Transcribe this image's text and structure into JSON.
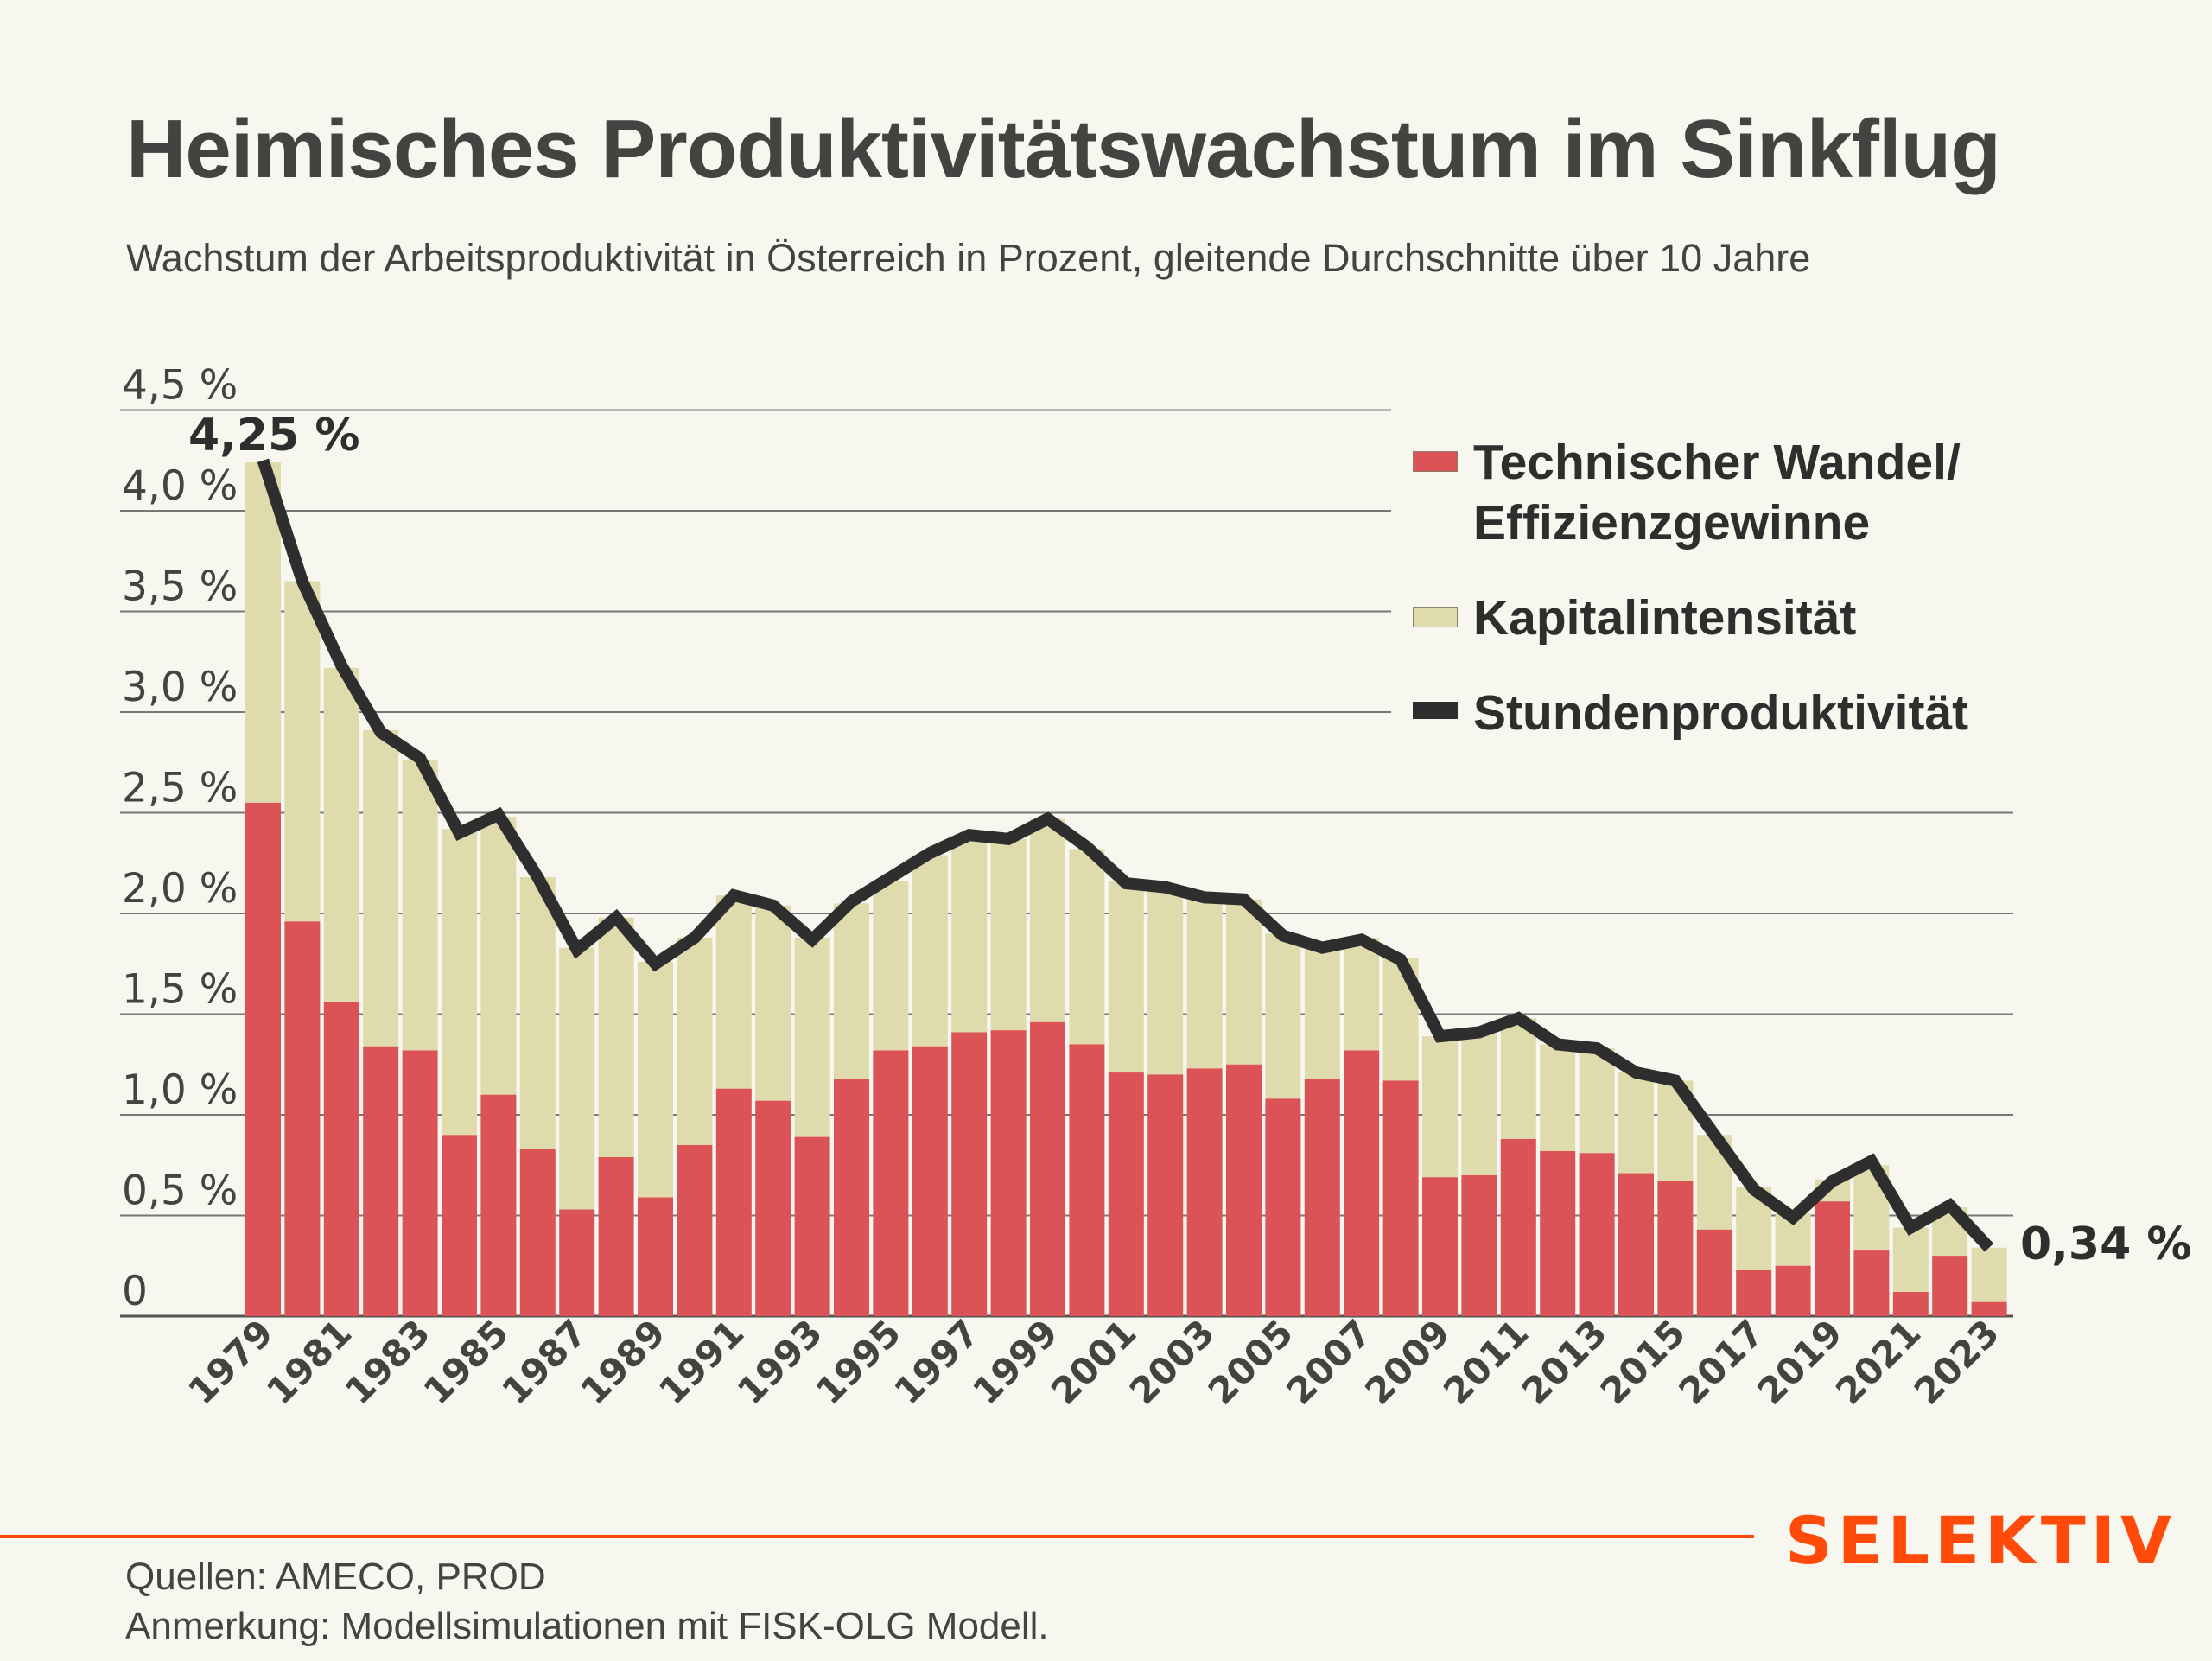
{
  "header": {
    "title": "Heimisches Produktivitätswachstum im Sinkflug",
    "subtitle": "Wachstum der Arbeitsproduktivität in Österreich in Prozent, gleitende Durchschnitte über 10 Jahre"
  },
  "legend": {
    "items": [
      {
        "label_line1": "Technischer Wandel/",
        "label_line2": "Effizienzgewinne",
        "color": "#DB5257"
      },
      {
        "label_line1": "Kapitalintensität",
        "label_line2": "",
        "color": "#DFDBAD"
      },
      {
        "label_line1": "Stundenproduktivität",
        "label_line2": "",
        "color": "#2E2E2E"
      }
    ]
  },
  "footer": {
    "sources": "Quellen: AMECO, PROD",
    "note": "Anmerkung: Modellsimulationen mit FISK-OLG Modell.",
    "brand": "SELEKTIV",
    "brand_color": "#FF4A0A"
  },
  "chart_data": {
    "type": "bar",
    "stacked": true,
    "title": "Heimisches Produktivitätswachstum im Sinkflug",
    "subtitle": "Wachstum der Arbeitsproduktivität in Österreich in Prozent, gleitende Durchschnitte über 10 Jahre",
    "xlabel": "",
    "ylabel": "",
    "ylim": [
      0,
      4.5
    ],
    "yticks": [
      0,
      0.5,
      1.0,
      1.5,
      2.0,
      2.5,
      3.0,
      3.5,
      4.0,
      4.5
    ],
    "ytick_labels": [
      "0",
      "0,5 %",
      "1,0 %",
      "1,5 %",
      "2,0 %",
      "2,5 %",
      "3,0 %",
      "3,5 %",
      "4,0 %",
      "4,5 %"
    ],
    "grid": true,
    "legend_position": "top-right",
    "categories": [
      1979,
      1980,
      1981,
      1982,
      1983,
      1984,
      1985,
      1986,
      1987,
      1988,
      1989,
      1990,
      1991,
      1992,
      1993,
      1994,
      1995,
      1996,
      1997,
      1998,
      1999,
      2000,
      2001,
      2002,
      2003,
      2004,
      2005,
      2006,
      2007,
      2008,
      2009,
      2010,
      2011,
      2012,
      2013,
      2014,
      2015,
      2016,
      2017,
      2018,
      2019,
      2020,
      2021,
      2022,
      2023
    ],
    "xtick_labels": [
      "1979",
      "1981",
      "1983",
      "1985",
      "1987",
      "1989",
      "1991",
      "1993",
      "1995",
      "1997",
      "1999",
      "2001",
      "2003",
      "2005",
      "2007",
      "2009",
      "2011",
      "2013",
      "2015",
      "2017",
      "2019",
      "2021",
      "2023"
    ],
    "series": [
      {
        "name": "Technischer Wandel/ Effizienzgewinne",
        "type": "bar",
        "color": "#DB5257",
        "values": [
          2.55,
          1.96,
          1.56,
          1.34,
          1.32,
          0.9,
          1.1,
          0.83,
          0.53,
          0.79,
          0.59,
          0.85,
          1.13,
          1.07,
          0.89,
          1.18,
          1.32,
          1.34,
          1.41,
          1.42,
          1.46,
          1.35,
          1.21,
          1.2,
          1.23,
          1.25,
          1.08,
          1.18,
          1.32,
          1.17,
          0.69,
          0.7,
          0.88,
          0.82,
          0.81,
          0.71,
          0.67,
          0.43,
          0.23,
          0.25,
          0.57,
          0.33,
          0.12,
          0.3,
          0.07
        ]
      },
      {
        "name": "Kapitalintensität",
        "type": "bar",
        "color": "#DFDBAD",
        "values": [
          1.69,
          1.69,
          1.66,
          1.57,
          1.44,
          1.52,
          1.38,
          1.35,
          1.3,
          1.19,
          1.17,
          1.03,
          0.96,
          0.97,
          0.99,
          0.87,
          0.84,
          0.95,
          0.96,
          0.95,
          1.01,
          0.97,
          0.95,
          0.93,
          0.84,
          0.82,
          0.82,
          0.66,
          0.56,
          0.61,
          0.7,
          0.7,
          0.6,
          0.53,
          0.52,
          0.5,
          0.5,
          0.47,
          0.41,
          0.26,
          0.11,
          0.42,
          0.32,
          0.24,
          0.27
        ]
      },
      {
        "name": "Stundenproduktivität",
        "type": "line",
        "color": "#2E2E2E",
        "values": [
          4.25,
          3.65,
          3.23,
          2.9,
          2.77,
          2.4,
          2.49,
          2.18,
          1.82,
          1.98,
          1.75,
          1.88,
          2.09,
          2.04,
          1.87,
          2.06,
          2.18,
          2.3,
          2.39,
          2.37,
          2.47,
          2.33,
          2.15,
          2.13,
          2.08,
          2.07,
          1.89,
          1.83,
          1.87,
          1.77,
          1.39,
          1.41,
          1.48,
          1.35,
          1.33,
          1.21,
          1.17,
          0.9,
          0.63,
          0.49,
          0.67,
          0.77,
          0.44,
          0.55,
          0.34
        ]
      }
    ],
    "annotations": [
      {
        "year": 1979,
        "text": "4,25 %"
      },
      {
        "year": 2023,
        "text": "0,34 %"
      }
    ]
  }
}
